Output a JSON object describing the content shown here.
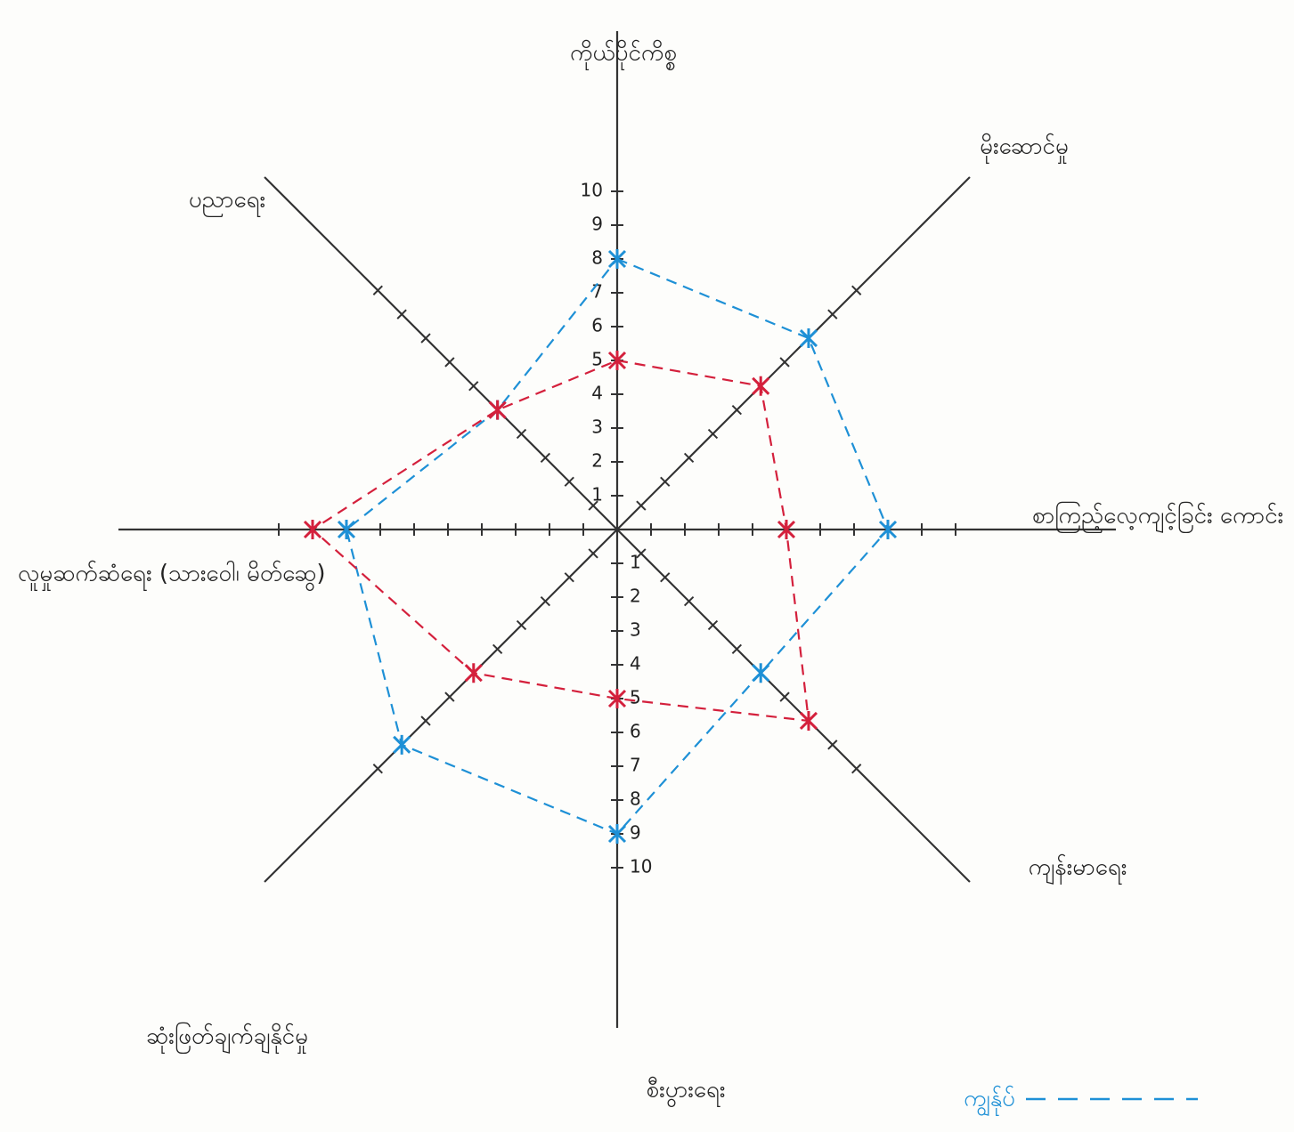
{
  "chart_data": {
    "type": "radar",
    "categories": [
      "ကိုယ်ပိုင်ကိစ္စ",
      "မိုးဆောင်မှု",
      "စာကြည့်လေ့ကျင့်ခြင်း ကောင်း",
      "ကျန်းမာရေး",
      "စီးပွားရေး",
      "ဆုံးဖြတ်ချက်ချနိုင်မှု",
      "လူမှုဆက်ဆံရေး (သားဝေါ၊ မိတ်ဆွေ)",
      "ပညာရေး"
    ],
    "series": [
      {
        "name": "ကျွန်ုပ်",
        "color": "#1e90d6",
        "values": [
          8,
          8,
          8,
          6,
          9,
          9,
          8,
          5
        ]
      },
      {
        "color": "#d4203c",
        "values": [
          5,
          6,
          5,
          8,
          5,
          6,
          9,
          5
        ]
      }
    ],
    "rlim": [
      0,
      10
    ],
    "rticks": [
      1,
      2,
      3,
      4,
      5,
      6,
      7,
      8,
      9,
      10
    ],
    "legend": "bottom-right"
  }
}
